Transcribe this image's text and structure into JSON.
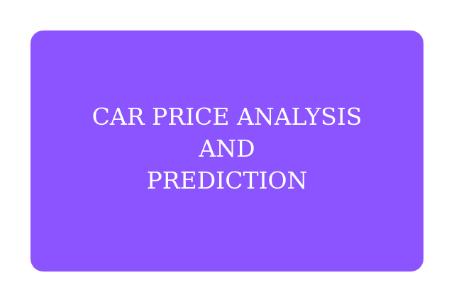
{
  "card": {
    "background_color": "#8C54FF",
    "text_color": "#FFFFFF",
    "title_lines": [
      "CAR PRICE ANALYSIS",
      "AND",
      "PREDICTION"
    ]
  }
}
